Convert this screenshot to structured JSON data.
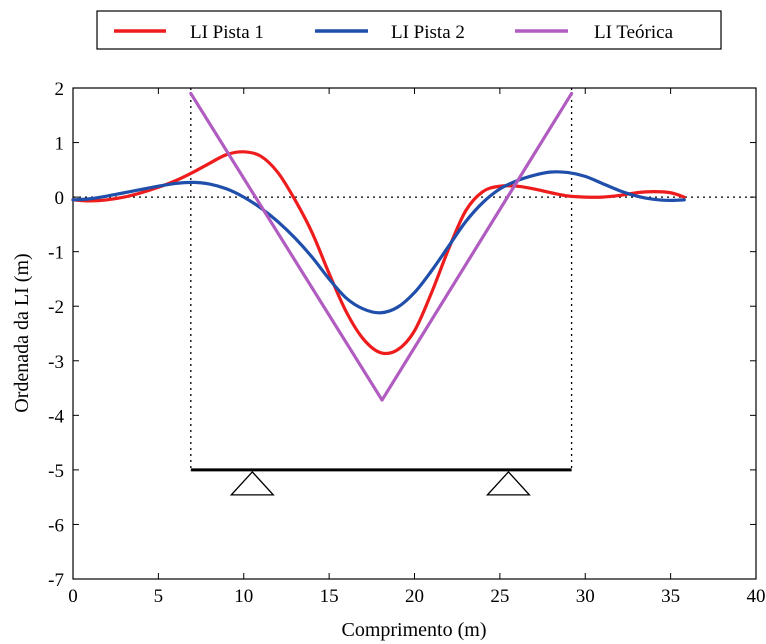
{
  "chart_data": {
    "type": "line",
    "xlabel": "Comprimento (m)",
    "ylabel": "Ordenada da LI (m)",
    "xlim": [
      0,
      40
    ],
    "ylim": [
      -7,
      2
    ],
    "xticks": [
      0,
      5,
      10,
      15,
      20,
      25,
      30,
      35,
      40
    ],
    "yticks": [
      2,
      1,
      0,
      -1,
      -2,
      -3,
      -4,
      -5,
      -6,
      -7
    ],
    "grid": false,
    "legend_position": "top",
    "series": [
      {
        "name": "LI Pista 1",
        "color": "#ee1c1c",
        "x": [
          0,
          1,
          2,
          3,
          4,
          5,
          6,
          7,
          8,
          9,
          10,
          11,
          12,
          13,
          14,
          15,
          16,
          17,
          18,
          19,
          20,
          21,
          22,
          23,
          24,
          25,
          26,
          27,
          28,
          29,
          30,
          31,
          32,
          33,
          34,
          35,
          35.8
        ],
        "y": [
          -0.05,
          -0.07,
          -0.05,
          0.0,
          0.08,
          0.18,
          0.3,
          0.45,
          0.62,
          0.78,
          0.83,
          0.75,
          0.45,
          -0.05,
          -0.65,
          -1.4,
          -2.1,
          -2.6,
          -2.85,
          -2.8,
          -2.45,
          -1.75,
          -0.95,
          -0.25,
          0.1,
          0.2,
          0.2,
          0.15,
          0.08,
          0.02,
          0.0,
          0.0,
          0.03,
          0.08,
          0.1,
          0.08,
          0.0
        ]
      },
      {
        "name": "LI Pista 2",
        "color": "#1f4faa",
        "x": [
          0,
          1,
          2,
          3,
          4,
          5,
          6,
          7,
          8,
          9,
          10,
          11,
          12,
          13,
          14,
          15,
          16,
          17,
          18,
          19,
          20,
          21,
          22,
          23,
          24,
          25,
          26,
          27,
          28,
          29,
          30,
          31,
          32,
          33,
          34,
          35,
          35.8
        ],
        "y": [
          -0.05,
          -0.03,
          0.02,
          0.08,
          0.14,
          0.2,
          0.25,
          0.27,
          0.24,
          0.15,
          0.0,
          -0.2,
          -0.45,
          -0.75,
          -1.1,
          -1.5,
          -1.85,
          -2.05,
          -2.12,
          -2.02,
          -1.75,
          -1.35,
          -0.9,
          -0.45,
          -0.1,
          0.15,
          0.3,
          0.4,
          0.46,
          0.45,
          0.38,
          0.25,
          0.12,
          0.02,
          -0.04,
          -0.06,
          -0.05
        ]
      },
      {
        "name": "LI Teórica",
        "color": "#b05cc0",
        "x": [
          6.9,
          18.1,
          29.2
        ],
        "y": [
          1.9,
          -3.72,
          1.9
        ]
      }
    ],
    "annotations": {
      "beam": {
        "x_start": 6.9,
        "x_end": 29.2,
        "y": -5
      },
      "supports_x": [
        10.5,
        25.5
      ],
      "dotted_verticals_x": [
        6.9,
        29.2
      ],
      "dotted_zero_line": true
    }
  }
}
